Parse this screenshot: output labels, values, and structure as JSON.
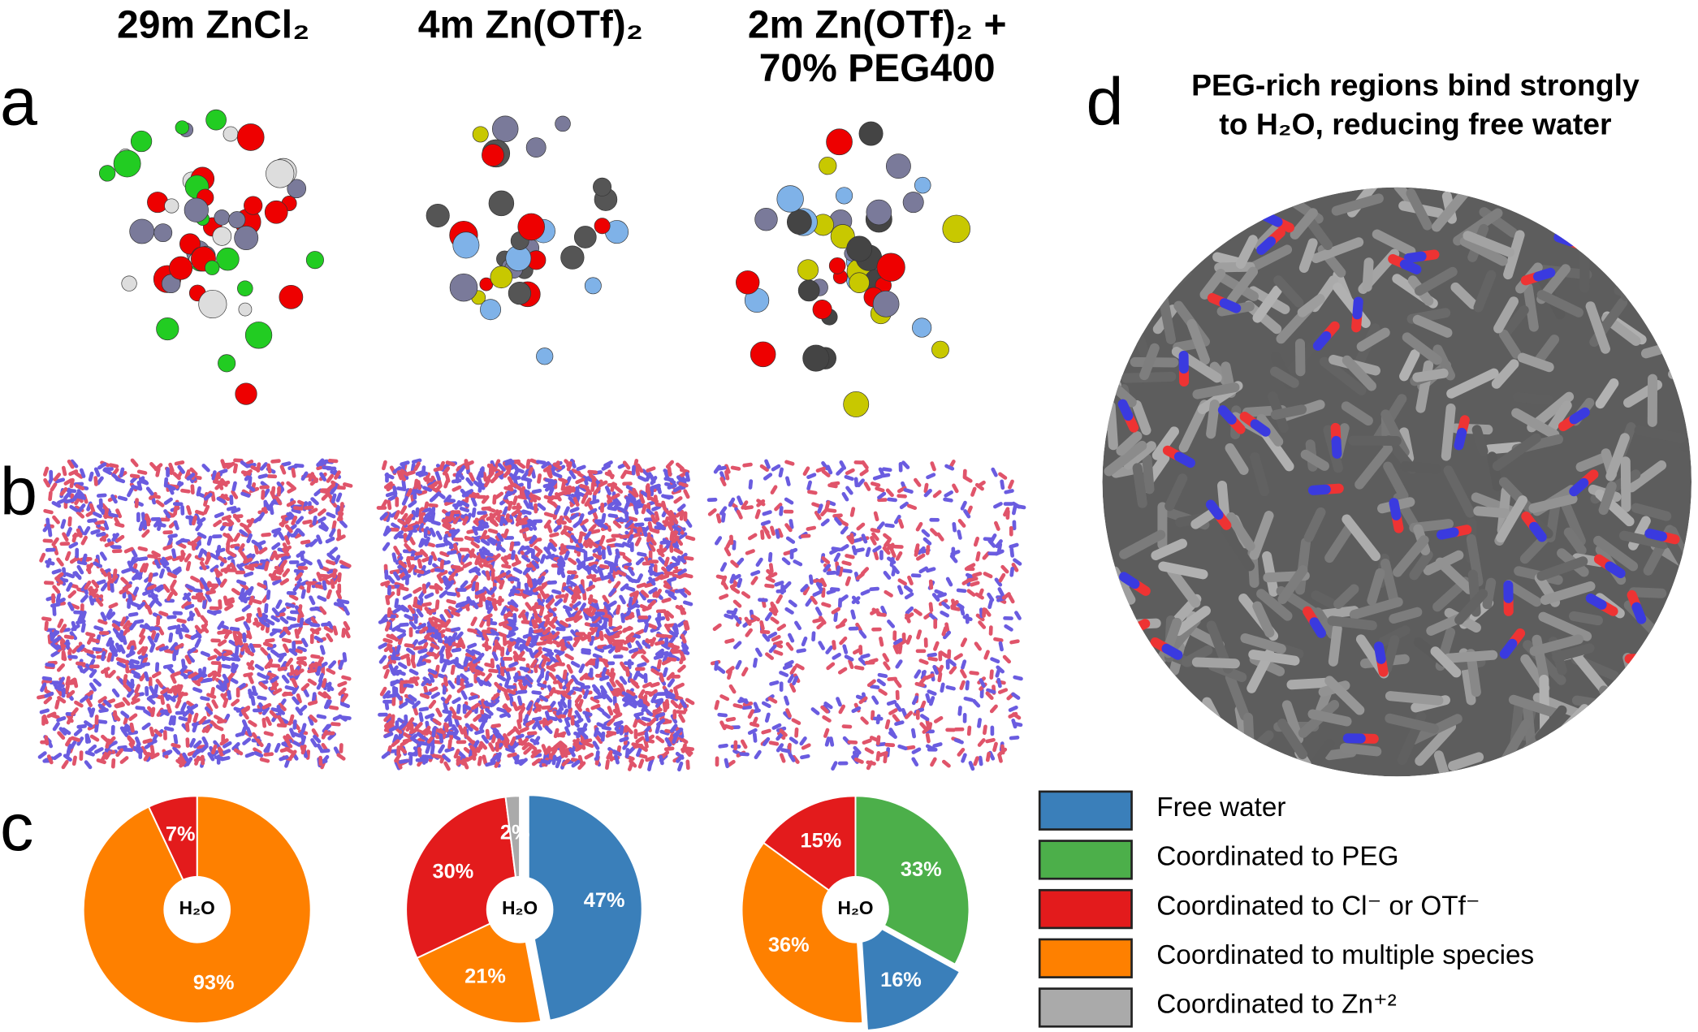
{
  "panels": [
    "a",
    "b",
    "c",
    "d"
  ],
  "d_title": [
    "PEG-rich regions bind strongly",
    "to H₂O, reducing free water"
  ],
  "legend": [
    {
      "label": "Free water",
      "color": "#3a7fba"
    },
    {
      "label": "Coordinated to PEG",
      "color": "#4caf4a"
    },
    {
      "label": "Coordinated to Cl⁻ or OTf⁻",
      "color": "#e31b1c"
    },
    {
      "label": "Coordinated to multiple species",
      "color": "#fe8000"
    },
    {
      "label": "Coordinated to Zn⁺²",
      "color": "#aaaaaa"
    }
  ],
  "chart_data": [
    {
      "type": "pie",
      "title": [
        "29m ZnCl₂"
      ],
      "center_label": "H₂O",
      "values": [
        93,
        7
      ],
      "value_labels": [
        "93%",
        "7%"
      ],
      "colors": [
        "#fe8000",
        "#e31b1c"
      ],
      "exploded": [
        false,
        false
      ]
    },
    {
      "type": "pie",
      "title": [
        "4m Zn(OTf)₂"
      ],
      "center_label": "H₂O",
      "values": [
        47,
        21,
        30,
        2
      ],
      "value_labels": [
        "47%",
        "21%",
        "30%",
        "2%"
      ],
      "colors": [
        "#3a7fba",
        "#fe8000",
        "#e31b1c",
        "#aaaaaa"
      ],
      "exploded": [
        true,
        false,
        false,
        false
      ]
    },
    {
      "type": "pie",
      "title": [
        "2m Zn(OTf)₂ +",
        "70% PEG400"
      ],
      "center_label": "H₂O",
      "values": [
        33,
        16,
        36,
        15
      ],
      "value_labels": [
        "33%",
        "16%",
        "36%",
        "15%"
      ],
      "colors": [
        "#4caf4a",
        "#3a7fba",
        "#fe8000",
        "#e31b1c"
      ],
      "exploded": [
        false,
        true,
        false,
        false
      ]
    }
  ]
}
